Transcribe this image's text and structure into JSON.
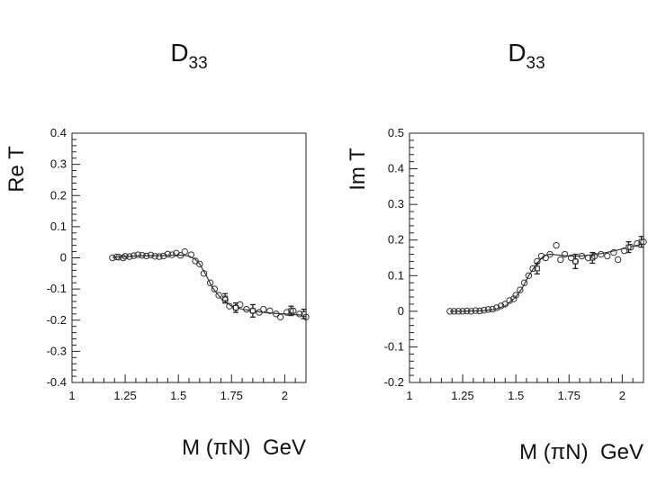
{
  "chart_data": [
    {
      "type": "scatter",
      "panel": "left",
      "title": "D",
      "title_sub": "33",
      "ylabel": "Re T",
      "xlabel": "M (πN)  GeV",
      "xlim": [
        1,
        2.1
      ],
      "ylim": [
        -0.4,
        0.4
      ],
      "xticks": [
        1,
        1.25,
        1.5,
        1.75,
        2
      ],
      "xtick_labels": [
        "1",
        "1.25",
        "1.5",
        "1.75",
        "2"
      ],
      "yticks": [
        0.4,
        0.3,
        0.2,
        0.1,
        0,
        -0.1,
        -0.2,
        -0.3,
        -0.4
      ],
      "ytick_labels": [
        "0.4",
        "0.3",
        "0.2",
        "0.1",
        "0",
        "-0.1",
        "-0.2",
        "-0.3",
        "-0.4"
      ],
      "curve": {
        "x": [
          1.19,
          1.25,
          1.3,
          1.35,
          1.4,
          1.45,
          1.5,
          1.55,
          1.58,
          1.6,
          1.63,
          1.66,
          1.7,
          1.75,
          1.8,
          1.85,
          1.9,
          1.95,
          2.0,
          2.05,
          2.1
        ],
        "y": [
          0.002,
          0.004,
          0.006,
          0.007,
          0.007,
          0.008,
          0.009,
          0.006,
          -0.005,
          -0.02,
          -0.055,
          -0.095,
          -0.13,
          -0.155,
          -0.165,
          -0.17,
          -0.175,
          -0.178,
          -0.18,
          -0.182,
          -0.185
        ]
      },
      "points": {
        "x": [
          1.19,
          1.21,
          1.22,
          1.24,
          1.25,
          1.27,
          1.29,
          1.31,
          1.33,
          1.35,
          1.37,
          1.39,
          1.41,
          1.43,
          1.45,
          1.47,
          1.49,
          1.51,
          1.53,
          1.56,
          1.58,
          1.6,
          1.62,
          1.65,
          1.67,
          1.69,
          1.72,
          1.74,
          1.77,
          1.79,
          1.82,
          1.85,
          1.88,
          1.9,
          1.93,
          1.96,
          1.98,
          2.01,
          2.04,
          2.07,
          2.1
        ],
        "y": [
          0.0,
          0.003,
          0.002,
          0.0,
          0.005,
          0.004,
          0.007,
          0.01,
          0.008,
          0.006,
          0.009,
          0.005,
          0.004,
          0.006,
          0.012,
          0.01,
          0.015,
          0.008,
          0.02,
          0.01,
          -0.01,
          -0.02,
          -0.05,
          -0.08,
          -0.1,
          -0.12,
          -0.135,
          -0.155,
          -0.16,
          -0.15,
          -0.165,
          -0.17,
          -0.175,
          -0.165,
          -0.17,
          -0.18,
          -0.19,
          -0.175,
          -0.17,
          -0.18,
          -0.19
        ]
      },
      "error_bars": {
        "x": [
          1.72,
          1.77,
          1.85,
          2.03,
          2.09
        ],
        "y": [
          -0.13,
          -0.16,
          -0.17,
          -0.17,
          -0.18
        ],
        "err": [
          0.015,
          0.015,
          0.02,
          0.015,
          0.015
        ]
      }
    },
    {
      "type": "scatter",
      "panel": "right",
      "title": "D",
      "title_sub": "33",
      "ylabel": "Im T",
      "xlabel": "M (πN)  GeV",
      "xlim": [
        1,
        2.1
      ],
      "ylim": [
        -0.2,
        0.5
      ],
      "xticks": [
        1,
        1.25,
        1.5,
        1.75,
        2
      ],
      "xtick_labels": [
        "1",
        "1.25",
        "1.5",
        "1.75",
        "2"
      ],
      "yticks": [
        0.5,
        0.4,
        0.3,
        0.2,
        0.1,
        0,
        -0.1,
        -0.2
      ],
      "ytick_labels": [
        "0.5",
        "0.4",
        "0.3",
        "0.2",
        "0.1",
        "0",
        "-0.1",
        "-0.2"
      ],
      "curve": {
        "x": [
          1.19,
          1.25,
          1.3,
          1.35,
          1.4,
          1.45,
          1.5,
          1.53,
          1.56,
          1.6,
          1.63,
          1.66,
          1.7,
          1.75,
          1.8,
          1.85,
          1.9,
          1.95,
          2.0,
          2.05,
          2.1
        ],
        "y": [
          0.0,
          0.0,
          0.001,
          0.002,
          0.005,
          0.015,
          0.04,
          0.065,
          0.1,
          0.135,
          0.155,
          0.16,
          0.158,
          0.155,
          0.155,
          0.158,
          0.162,
          0.168,
          0.175,
          0.182,
          0.19
        ]
      },
      "points": {
        "x": [
          1.19,
          1.21,
          1.23,
          1.25,
          1.27,
          1.29,
          1.31,
          1.33,
          1.35,
          1.37,
          1.39,
          1.41,
          1.43,
          1.45,
          1.47,
          1.49,
          1.5,
          1.52,
          1.54,
          1.56,
          1.58,
          1.6,
          1.62,
          1.64,
          1.66,
          1.69,
          1.71,
          1.73,
          1.76,
          1.78,
          1.81,
          1.84,
          1.87,
          1.9,
          1.93,
          1.96,
          1.98,
          2.01,
          2.04,
          2.07,
          2.1
        ],
        "y": [
          0.0,
          0.0,
          0.0,
          0.0,
          0.001,
          0.0,
          0.002,
          0.001,
          0.003,
          0.005,
          0.006,
          0.01,
          0.015,
          0.02,
          0.03,
          0.035,
          0.045,
          0.06,
          0.08,
          0.1,
          0.12,
          0.14,
          0.155,
          0.15,
          0.16,
          0.185,
          0.145,
          0.16,
          0.15,
          0.14,
          0.155,
          0.15,
          0.155,
          0.16,
          0.155,
          0.165,
          0.145,
          0.17,
          0.18,
          0.19,
          0.195
        ]
      },
      "error_bars": {
        "x": [
          1.6,
          1.78,
          1.86,
          2.03,
          2.09
        ],
        "y": [
          0.12,
          0.14,
          0.15,
          0.18,
          0.195
        ],
        "err": [
          0.015,
          0.02,
          0.015,
          0.015,
          0.015
        ]
      }
    }
  ]
}
